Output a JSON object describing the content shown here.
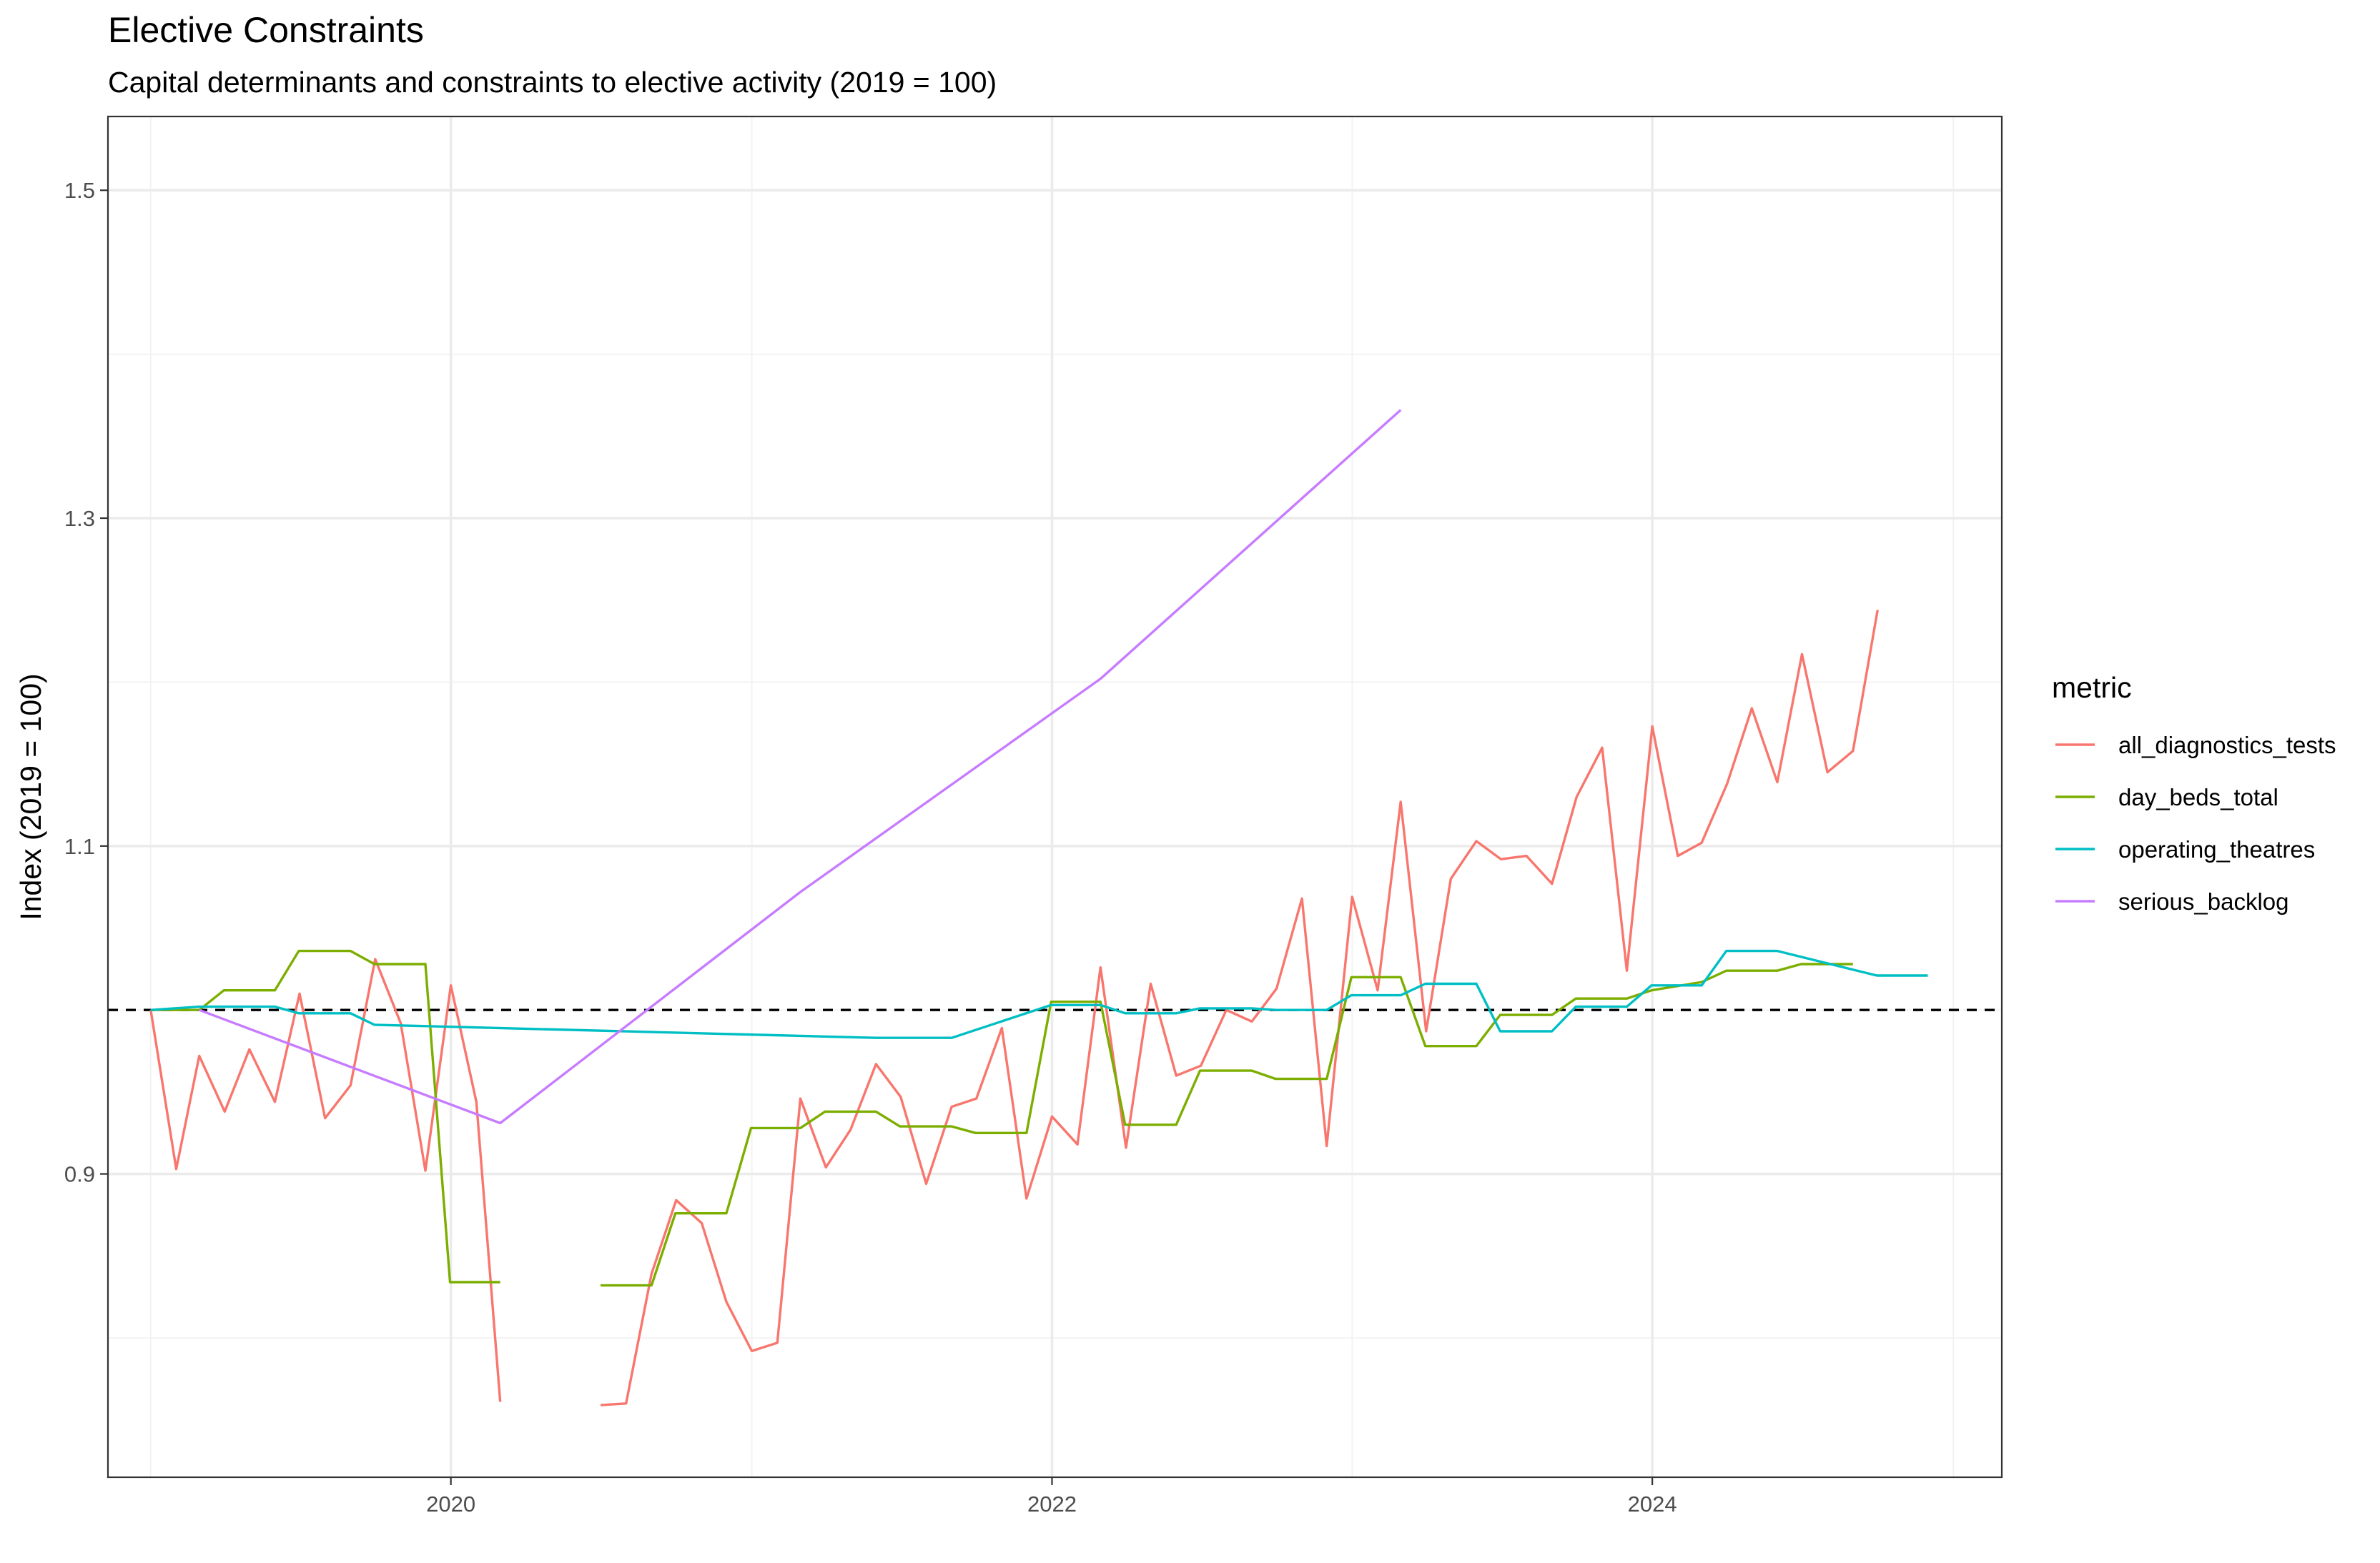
{
  "chart_data": {
    "type": "line",
    "title": "Elective Constraints",
    "subtitle": "Capital determinants and constraints to elective activity (2019 = 100)",
    "xlabel": "",
    "ylabel": "Index (2019 = 100)",
    "x_is_date": true,
    "xlim": [
      "2018-11-10",
      "2025-03-01"
    ],
    "ylim": [
      0.715,
      1.545
    ],
    "x_ticks": [
      "2020",
      "2022",
      "2024"
    ],
    "y_ticks": [
      "0.9",
      "1.1",
      "1.3",
      "1.5"
    ],
    "grid": true,
    "reference_line": {
      "y": 1.0,
      "style": "dashed",
      "color": "#000000"
    },
    "legend": {
      "title": "metric",
      "position": "right"
    },
    "series": [
      {
        "name": "all_diagnostics_tests",
        "color": "#F8766D",
        "segments": [
          {
            "x": [
              "2019-01-01",
              "2019-02-01",
              "2019-03-01",
              "2019-04-01",
              "2019-05-01",
              "2019-06-01",
              "2019-07-01",
              "2019-08-01",
              "2019-09-01",
              "2019-10-01",
              "2019-11-01",
              "2019-12-01",
              "2020-01-01",
              "2020-02-01",
              "2020-03-01"
            ],
            "y": [
              1.0,
              0.903,
              0.972,
              0.938,
              0.976,
              0.944,
              1.01,
              0.934,
              0.954,
              1.031,
              0.992,
              0.902,
              1.015,
              0.944,
              0.761
            ]
          },
          {
            "x": [
              "2020-07-01",
              "2020-08-01",
              "2020-09-01",
              "2020-10-01",
              "2020-11-01",
              "2020-12-01",
              "2021-01-01",
              "2021-02-01",
              "2021-03-01",
              "2021-04-01",
              "2021-05-01",
              "2021-06-01",
              "2021-07-01",
              "2021-08-01",
              "2021-09-01",
              "2021-10-01",
              "2021-11-01",
              "2021-12-01",
              "2022-01-01",
              "2022-02-01",
              "2022-03-01",
              "2022-04-01",
              "2022-05-01",
              "2022-06-01",
              "2022-07-01",
              "2022-08-01",
              "2022-09-01",
              "2022-10-01",
              "2022-11-01",
              "2022-12-01",
              "2023-01-01",
              "2023-02-01",
              "2023-03-01",
              "2023-04-01",
              "2023-05-01",
              "2023-06-01",
              "2023-07-01",
              "2023-08-01",
              "2023-09-01",
              "2023-10-01",
              "2023-11-01",
              "2023-12-01",
              "2024-01-01",
              "2024-02-01",
              "2024-03-01",
              "2024-04-01",
              "2024-05-01",
              "2024-06-01",
              "2024-07-01",
              "2024-08-01",
              "2024-09-01",
              "2024-10-01"
            ],
            "y": [
              0.759,
              0.76,
              0.839,
              0.884,
              0.87,
              0.822,
              0.792,
              0.797,
              0.946,
              0.904,
              0.927,
              0.967,
              0.947,
              0.894,
              0.941,
              0.946,
              0.989,
              0.885,
              0.935,
              0.918,
              1.026,
              0.916,
              1.016,
              0.96,
              0.966,
              1.0,
              0.993,
              1.013,
              1.068,
              0.917,
              1.069,
              1.012,
              1.127,
              0.987,
              1.08,
              1.103,
              1.092,
              1.094,
              1.077,
              1.13,
              1.16,
              1.024,
              1.173,
              1.094,
              1.102,
              1.138,
              1.184,
              1.139,
              1.217,
              1.145,
              1.158,
              1.244
            ]
          }
        ]
      },
      {
        "name": "day_beds_total",
        "color": "#7CAE00",
        "segments": [
          {
            "x": [
              "2019-01-01",
              "2019-03-01",
              "2019-03-31",
              "2019-06-01",
              "2019-06-30",
              "2019-09-01",
              "2019-09-30",
              "2019-12-01",
              "2019-12-31",
              "2020-03-01"
            ],
            "y": [
              1.0,
              1.0,
              1.012,
              1.012,
              1.036,
              1.036,
              1.028,
              1.028,
              0.834,
              0.834
            ]
          },
          {
            "x": [
              "2020-07-01",
              "2020-09-01",
              "2020-09-30",
              "2020-12-01",
              "2020-12-31",
              "2021-03-01",
              "2021-03-31",
              "2021-06-01",
              "2021-06-30",
              "2021-09-01",
              "2021-09-30",
              "2021-12-01",
              "2021-12-31",
              "2022-03-01",
              "2022-03-31",
              "2022-06-01",
              "2022-06-30",
              "2022-09-01",
              "2022-09-30",
              "2022-12-01",
              "2022-12-31",
              "2023-03-01",
              "2023-03-31",
              "2023-06-01",
              "2023-06-30",
              "2023-09-01",
              "2023-09-30",
              "2023-12-01",
              "2023-12-31",
              "2024-03-01",
              "2024-03-31",
              "2024-06-01",
              "2024-06-30",
              "2024-09-01"
            ],
            "y": [
              0.832,
              0.832,
              0.876,
              0.876,
              0.928,
              0.928,
              0.938,
              0.938,
              0.929,
              0.929,
              0.925,
              0.925,
              1.005,
              1.005,
              0.93,
              0.93,
              0.963,
              0.963,
              0.958,
              0.958,
              1.02,
              1.02,
              0.978,
              0.978,
              0.997,
              0.997,
              1.007,
              1.007,
              1.012,
              1.017,
              1.024,
              1.024,
              1.028,
              1.028
            ]
          }
        ]
      },
      {
        "name": "operating_theatres",
        "color": "#00BFC4",
        "segments": [
          {
            "x": [
              "2019-01-01",
              "2019-03-01",
              "2019-06-01",
              "2019-06-30",
              "2019-09-01",
              "2019-09-30",
              "2021-06-01",
              "2021-09-01",
              "2021-12-31",
              "2022-03-01",
              "2022-03-31",
              "2022-06-01",
              "2022-06-30",
              "2022-09-01",
              "2022-09-30",
              "2022-12-01",
              "2022-12-31",
              "2023-03-01",
              "2023-03-31",
              "2023-06-01",
              "2023-06-30",
              "2023-09-01",
              "2023-09-30",
              "2023-12-01",
              "2023-12-31",
              "2024-03-01",
              "2024-03-31",
              "2024-06-01",
              "2024-09-30",
              "2024-12-01"
            ],
            "y": [
              1.0,
              1.002,
              1.002,
              0.998,
              0.998,
              0.991,
              0.983,
              0.983,
              1.003,
              1.003,
              0.998,
              0.998,
              1.001,
              1.001,
              1.0,
              1.0,
              1.009,
              1.009,
              1.016,
              1.016,
              0.987,
              0.987,
              1.002,
              1.002,
              1.015,
              1.015,
              1.036,
              1.036,
              1.021,
              1.021
            ]
          }
        ]
      },
      {
        "name": "serious_backlog",
        "color": "#C77CFF",
        "segments": [
          {
            "x": [
              "2019-03-01",
              "2020-03-01",
              "2021-03-01",
              "2022-03-01",
              "2023-03-01"
            ],
            "y": [
              1.0,
              0.931,
              1.072,
              1.202,
              1.366
            ]
          }
        ]
      }
    ]
  }
}
